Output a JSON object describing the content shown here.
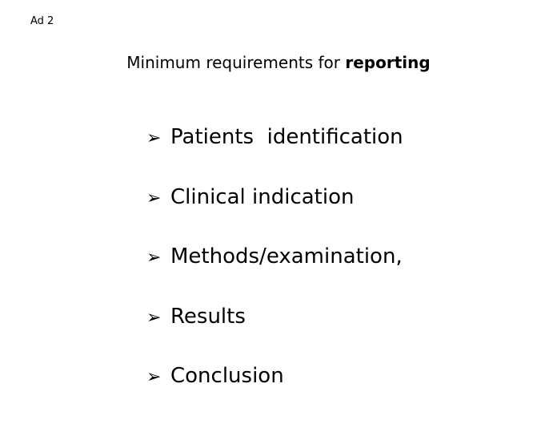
{
  "slide": {
    "tag": "Ad 2",
    "title_prefix": "Minimum requirements for ",
    "title_bold": "reporting",
    "bullet_icon": "arrowhead-bullet-icon",
    "items": [
      {
        "label": "Patients  identification"
      },
      {
        "label": "Clinical indication"
      },
      {
        "label": "Methods/examination,"
      },
      {
        "label": "Results"
      },
      {
        "label": "Conclusion"
      }
    ]
  }
}
